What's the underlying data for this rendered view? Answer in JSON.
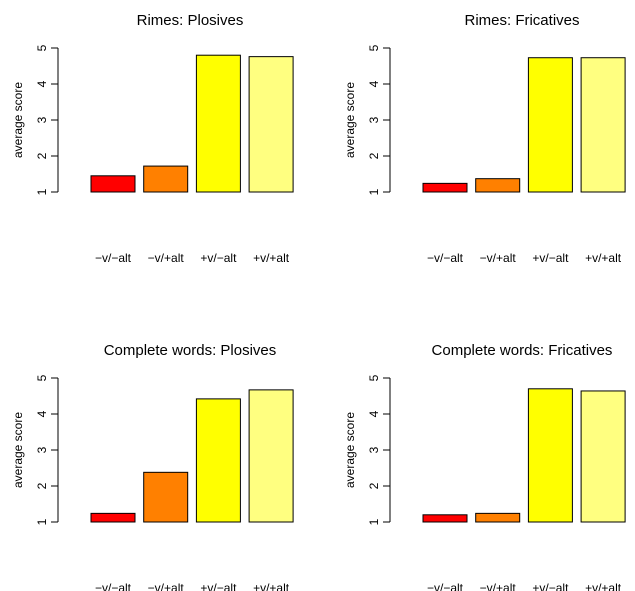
{
  "chart_data": [
    {
      "type": "bar",
      "title": "Rimes: Plosives",
      "xlabel": "",
      "ylabel": "average score",
      "ylim": [
        1,
        5
      ],
      "yticks": [
        "1",
        "2",
        "3",
        "4",
        "5"
      ],
      "categories": [
        "−v/−alt",
        "−v/+alt",
        "+v/−alt",
        "+v/+alt"
      ],
      "values": [
        1.45,
        1.72,
        4.8,
        4.76
      ],
      "colors": [
        "#ff0000",
        "#ff8000",
        "#ffff00",
        "#ffff80"
      ],
      "grid": false
    },
    {
      "type": "bar",
      "title": "Rimes: Fricatives",
      "xlabel": "",
      "ylabel": "average score",
      "ylim": [
        1,
        5
      ],
      "yticks": [
        "1",
        "2",
        "3",
        "4",
        "5"
      ],
      "categories": [
        "−v/−alt",
        "−v/+alt",
        "+v/−alt",
        "+v/+alt"
      ],
      "values": [
        1.24,
        1.37,
        4.73,
        4.73
      ],
      "colors": [
        "#ff0000",
        "#ff8000",
        "#ffff00",
        "#ffff80"
      ],
      "grid": false
    },
    {
      "type": "bar",
      "title": "Complete words: Plosives",
      "xlabel": "",
      "ylabel": "average score",
      "ylim": [
        1,
        5
      ],
      "yticks": [
        "1",
        "2",
        "3",
        "4",
        "5"
      ],
      "categories": [
        "−v/−alt",
        "−v/+alt",
        "+v/−alt",
        "+v/+alt"
      ],
      "values": [
        1.24,
        2.38,
        4.42,
        4.67
      ],
      "colors": [
        "#ff0000",
        "#ff8000",
        "#ffff00",
        "#ffff80"
      ],
      "grid": false
    },
    {
      "type": "bar",
      "title": "Complete words: Fricatives",
      "xlabel": "",
      "ylabel": "average score",
      "ylim": [
        1,
        5
      ],
      "yticks": [
        "1",
        "2",
        "3",
        "4",
        "5"
      ],
      "categories": [
        "−v/−alt",
        "−v/+alt",
        "+v/−alt",
        "+v/+alt"
      ],
      "values": [
        1.2,
        1.24,
        4.7,
        4.64
      ],
      "colors": [
        "#ff0000",
        "#ff8000",
        "#ffff00",
        "#ffff80"
      ],
      "grid": false
    }
  ]
}
